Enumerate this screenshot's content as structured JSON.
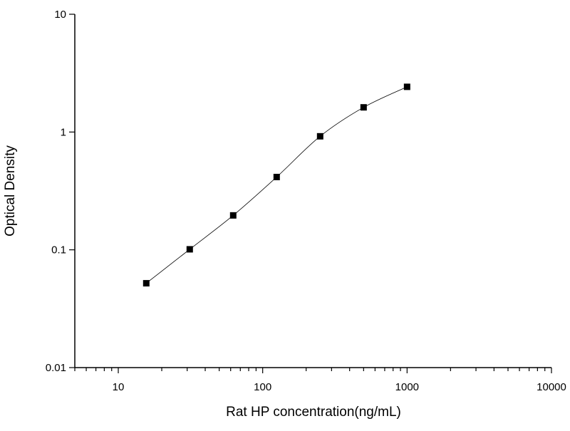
{
  "chart_data": {
    "type": "scatter",
    "title": "",
    "xlabel": "Rat HP concentration(ng/mL)",
    "ylabel": "Optical Density",
    "xscale": "log",
    "yscale": "log",
    "xlim": [
      5,
      10000
    ],
    "ylim": [
      0.01,
      10
    ],
    "xticks": [
      10,
      100,
      1000,
      10000
    ],
    "xtick_labels": [
      "10",
      "100",
      "1000",
      "10000"
    ],
    "yticks": [
      0.01,
      0.1,
      1,
      10
    ],
    "ytick_labels": [
      "0.01",
      "0.1",
      "1",
      "10"
    ],
    "grid": false,
    "marker": "square",
    "fit_curve": true,
    "color": "#000000",
    "series": [
      {
        "x": [
          15.625,
          31.25,
          62.5,
          125,
          250,
          500,
          1000
        ],
        "y": [
          0.052,
          0.101,
          0.196,
          0.415,
          0.92,
          1.62,
          2.42
        ]
      }
    ]
  }
}
